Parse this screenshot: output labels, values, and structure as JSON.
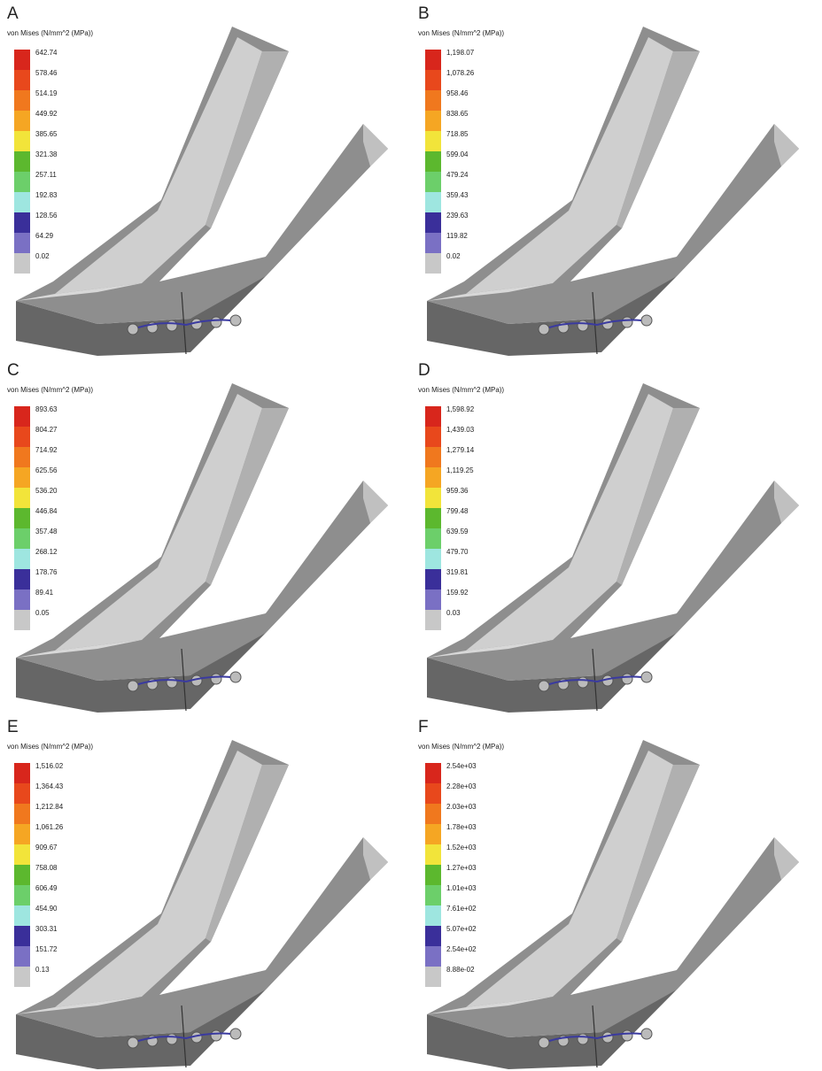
{
  "panels": [
    {
      "letter": "A",
      "legend_title": "von Mises (N/mm^2 (MPa))",
      "legend_labels": [
        "642.74",
        "578.46",
        "514.19",
        "449.92",
        "385.65",
        "321.38",
        "257.11",
        "192.83",
        "128.56",
        "64.29",
        "0.02"
      ]
    },
    {
      "letter": "B",
      "legend_title": "von Mises (N/mm^2 (MPa))",
      "legend_labels": [
        "1,198.07",
        "1,078.26",
        "958.46",
        "838.65",
        "718.85",
        "599.04",
        "479.24",
        "359.43",
        "239.63",
        "119.82",
        "0.02"
      ]
    },
    {
      "letter": "C",
      "legend_title": "von Mises (N/mm^2 (MPa))",
      "legend_labels": [
        "893.63",
        "804.27",
        "714.92",
        "625.56",
        "536.20",
        "446.84",
        "357.48",
        "268.12",
        "178.76",
        "89.41",
        "0.05"
      ]
    },
    {
      "letter": "D",
      "legend_title": "von Mises (N/mm^2 (MPa))",
      "legend_labels": [
        "1,598.92",
        "1,439.03",
        "1,279.14",
        "1,119.25",
        "959.36",
        "799.48",
        "639.59",
        "479.70",
        "319.81",
        "159.92",
        "0.03"
      ]
    },
    {
      "letter": "E",
      "legend_title": "von Mises (N/mm^2 (MPa))",
      "legend_labels": [
        "1,516.02",
        "1,364.43",
        "1,212.84",
        "1,061.26",
        "909.67",
        "758.08",
        "606.49",
        "454.90",
        "303.31",
        "151.72",
        "0.13"
      ]
    },
    {
      "letter": "F",
      "legend_title": "von Mises (N/mm^2 (MPa))",
      "legend_labels": [
        "2.54e+03",
        "2.28e+03",
        "2.03e+03",
        "1.78e+03",
        "1.52e+03",
        "1.27e+03",
        "1.01e+03",
        "7.61e+02",
        "5.07e+02",
        "2.54e+02",
        "8.88e-02"
      ]
    }
  ]
}
